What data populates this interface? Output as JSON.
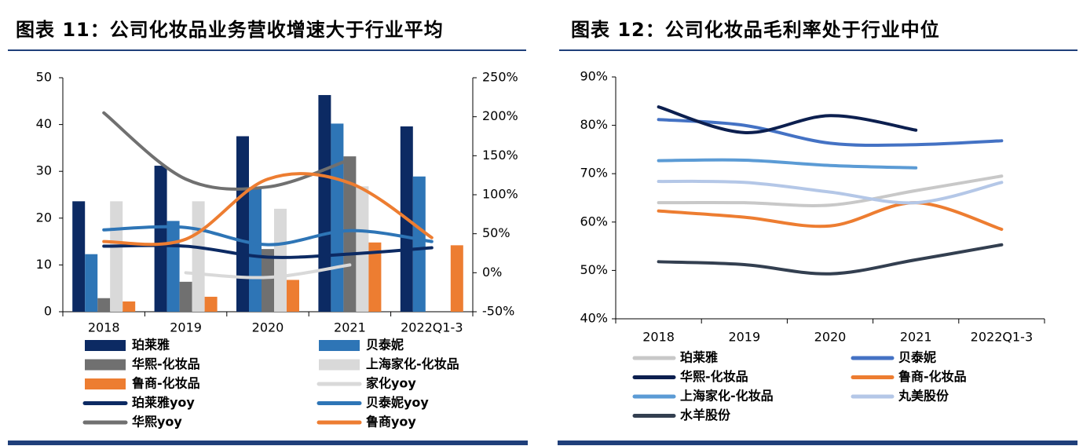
{
  "charts": [
    {
      "title": "图表 11：公司化妆品业务营收增速大于行业平均",
      "type": "bar+line",
      "categories": [
        "2018",
        "2019",
        "2020",
        "2021",
        "2022Q1-3"
      ],
      "y_left": {
        "ylim": [
          0,
          50
        ],
        "ticks": [
          "0",
          "10",
          "20",
          "30",
          "40",
          "50"
        ]
      },
      "y_right": {
        "ylim": [
          -50,
          250
        ],
        "ticks": [
          "-50%",
          "0%",
          "50%",
          "100%",
          "150%",
          "200%",
          "250%"
        ]
      },
      "bars": [
        {
          "name": "珀莱雅",
          "color": "#0c2a63",
          "values": [
            23.6,
            31.2,
            37.5,
            46.3,
            39.6
          ]
        },
        {
          "name": "贝泰妮",
          "color": "#2e75b6",
          "values": [
            12.3,
            19.4,
            26.4,
            40.2,
            28.9
          ]
        },
        {
          "name": "华熙-化妆品",
          "color": "#707070",
          "values": [
            2.9,
            6.4,
            13.4,
            33.2,
            null
          ]
        },
        {
          "name": "上海家化-化妆品",
          "color": "#d9d9d9",
          "values": [
            23.6,
            23.6,
            22.0,
            26.8,
            null
          ]
        },
        {
          "name": "鲁商-化妆品",
          "color": "#ed7d31",
          "values": [
            2.2,
            3.2,
            6.8,
            14.8,
            14.2
          ]
        }
      ],
      "lines": [
        {
          "name": "家化yoy",
          "color": "#d9d9d9",
          "values": [
            null,
            0,
            -6,
            10,
            null
          ]
        },
        {
          "name": "珀莱雅yoy",
          "color": "#0c2a63",
          "values": [
            34,
            34,
            20,
            24,
            32
          ]
        },
        {
          "name": "华熙yoy",
          "color": "#707070",
          "values": [
            205,
            120,
            110,
            145,
            null
          ]
        },
        {
          "name": "贝泰妮yoy",
          "color": "#2e75b6",
          "values": [
            55,
            58,
            36,
            54,
            40
          ]
        },
        {
          "name": "鲁商yoy",
          "color": "#ed7d31",
          "values": [
            40,
            43,
            120,
            115,
            45
          ]
        }
      ],
      "legend_order": [
        "珀莱雅",
        "贝泰妮",
        "华熙-化妆品",
        "上海家化-化妆品",
        "鲁商-化妆品",
        "家化yoy",
        "珀莱雅yoy",
        "贝泰妮yoy",
        "华熙yoy",
        "鲁商yoy"
      ]
    },
    {
      "title": "图表 12：公司化妆品毛利率处于行业中位",
      "type": "line",
      "categories": [
        "2018",
        "2019",
        "2020",
        "2021",
        "2022Q1-3"
      ],
      "ylim": [
        40,
        90
      ],
      "ticks": [
        "40%",
        "50%",
        "60%",
        "70%",
        "80%",
        "90%"
      ],
      "series": [
        {
          "name": "珀莱雅",
          "color": "#c8c8c8",
          "values": [
            64,
            64,
            63.5,
            66.5,
            69.5
          ]
        },
        {
          "name": "贝泰妮",
          "color": "#4472c4",
          "values": [
            81.2,
            80,
            76.3,
            76,
            76.8
          ]
        },
        {
          "name": "华熙-化妆品",
          "color": "#0c1f4f",
          "values": [
            83.8,
            78.5,
            82,
            79,
            null
          ]
        },
        {
          "name": "鲁商-化妆品",
          "color": "#ed7d31",
          "values": [
            62.3,
            61,
            59.2,
            64,
            58.5
          ]
        },
        {
          "name": "上海家化-化妆品",
          "color": "#5b9bd5",
          "values": [
            72.7,
            72.8,
            71.7,
            71.2,
            null
          ]
        },
        {
          "name": "丸美股份",
          "color": "#b4c7e7",
          "values": [
            68.4,
            68.2,
            66.2,
            64,
            68.2
          ]
        },
        {
          "name": "水羊股份",
          "color": "#333f50",
          "values": [
            51.8,
            51.2,
            49.3,
            52.2,
            55.3
          ]
        }
      ]
    }
  ]
}
